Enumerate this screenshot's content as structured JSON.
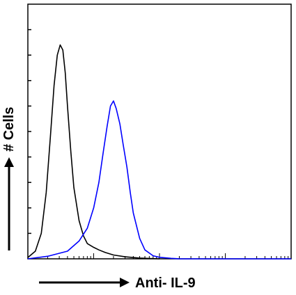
{
  "chart_data": {
    "type": "line",
    "title": "",
    "xlabel": "Anti- IL-9",
    "ylabel": "# Cells",
    "x_scale": "log",
    "xlim": [
      1,
      10000
    ],
    "ylim": [
      0,
      100
    ],
    "grid": false,
    "legend": "none",
    "series": [
      {
        "color": "#000000",
        "x": [
          1.0,
          1.3,
          1.6,
          1.9,
          2.2,
          2.5,
          2.8,
          3.1,
          3.4,
          3.7,
          4.0,
          4.5,
          5.0,
          6.0,
          7.0,
          8.0,
          10.0,
          12.0,
          15.0,
          20.0,
          30.0,
          50.0,
          100.0
        ],
        "y": [
          0.5,
          3,
          10,
          26,
          48,
          68,
          80,
          84,
          82,
          73,
          60,
          42,
          28,
          15,
          9,
          6,
          4.5,
          3.5,
          2.5,
          1.5,
          0.8,
          0.3,
          0
        ]
      },
      {
        "color": "#0000ff",
        "x": [
          1.0,
          2.0,
          4.0,
          6.0,
          8.0,
          10.0,
          12.0,
          14.0,
          16.0,
          18.0,
          20.0,
          22.0,
          25.0,
          28.0,
          32.0,
          36.0,
          40.0,
          50.0,
          60.0,
          80.0,
          100.0,
          150.0,
          200.0,
          400.0,
          1000.0,
          10000.0
        ],
        "y": [
          0,
          1,
          3,
          7,
          12,
          20,
          30,
          42,
          52,
          60,
          62,
          59,
          53,
          45,
          36,
          26,
          18,
          8,
          3.5,
          1.2,
          0.6,
          0.2,
          0,
          0,
          0,
          0
        ]
      }
    ]
  }
}
